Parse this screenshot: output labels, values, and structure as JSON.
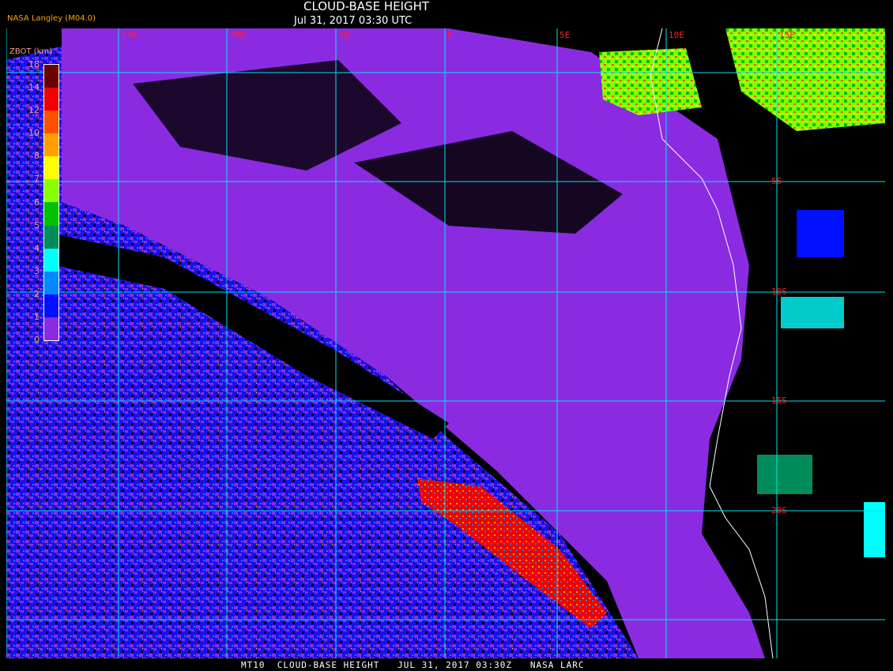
{
  "header": {
    "title": "CLOUD-BASE HEIGHT",
    "subtitle": "Jul 31, 2017 03:30 UTC",
    "source": "NASA Langley (M04.0)"
  },
  "legend": {
    "title": "ZBOT (km)",
    "ticks": [
      "18",
      "14",
      "12",
      "10",
      "8",
      "7",
      "6",
      "5",
      "4",
      "3",
      "2",
      "1",
      "0"
    ],
    "bands": [
      {
        "range": "14-18",
        "color": "#6a0000"
      },
      {
        "range": "12-14",
        "color": "#f00000"
      },
      {
        "range": "10-12",
        "color": "#ff5000"
      },
      {
        "range": "8-10",
        "color": "#ffa000"
      },
      {
        "range": "7-8",
        "color": "#ffff00"
      },
      {
        "range": "6-7",
        "color": "#88ff00"
      },
      {
        "range": "5-6",
        "color": "#00c000"
      },
      {
        "range": "4-5",
        "color": "#008c5a"
      },
      {
        "range": "3-4",
        "color": "#00ffff"
      },
      {
        "range": "2-3",
        "color": "#0088ff"
      },
      {
        "range": "1-2",
        "color": "#0010ff"
      },
      {
        "range": "0-1",
        "color": "#8a2be2"
      }
    ]
  },
  "grid": {
    "longitudes": [
      "15W",
      "10W",
      "5W",
      "0",
      "5E",
      "10E",
      "15E"
    ],
    "latitudes": [
      "5S",
      "10S",
      "15S",
      "20S"
    ],
    "color": "#00e5ee"
  },
  "footer": {
    "text": "MT10  CLOUD-BASE HEIGHT   JUL 31, 2017 03:30Z   NASA LARC"
  }
}
